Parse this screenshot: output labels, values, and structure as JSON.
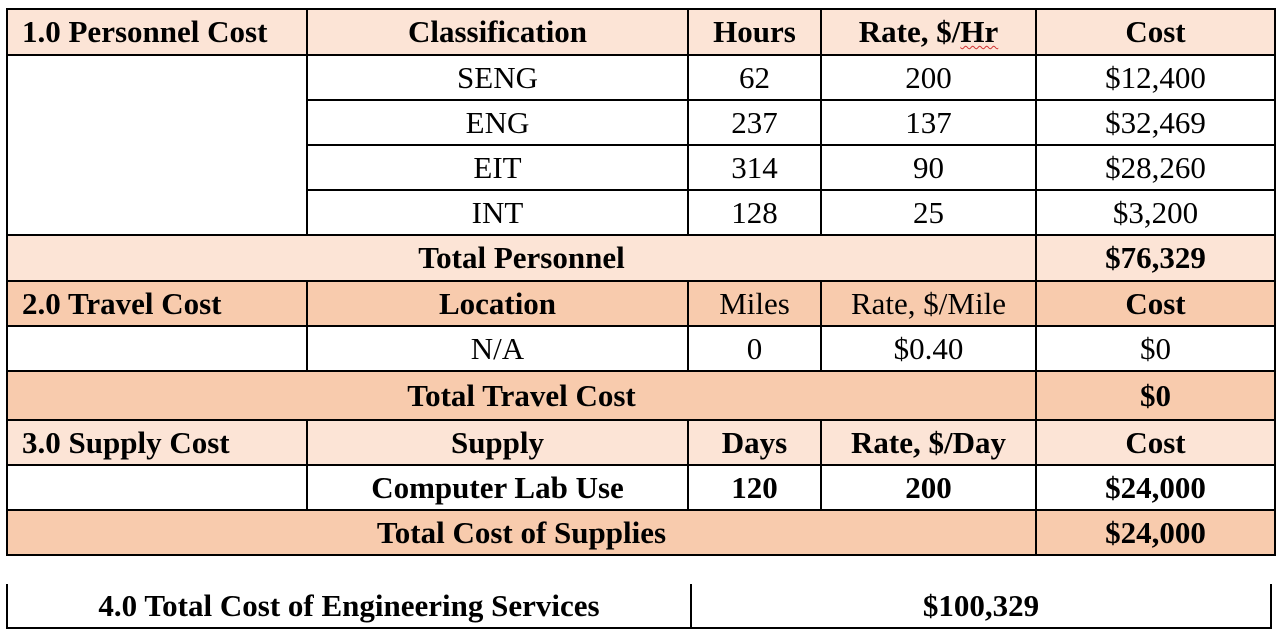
{
  "personnel": {
    "section_label": "1.0 Personnel Cost",
    "headers": {
      "classification": "Classification",
      "hours": "Hours",
      "rate_prefix": "Rate, $/",
      "rate_unit": "Hr",
      "cost": "Cost"
    },
    "rows": [
      {
        "classification": "SENG",
        "hours": "62",
        "rate": "200",
        "cost": "$12,400"
      },
      {
        "classification": "ENG",
        "hours": "237",
        "rate": "137",
        "cost": "$32,469"
      },
      {
        "classification": "EIT",
        "hours": "314",
        "rate": "90",
        "cost": "$28,260"
      },
      {
        "classification": "INT",
        "hours": "128",
        "rate": "25",
        "cost": "$3,200"
      }
    ],
    "total_label": "Total Personnel",
    "total_value": "$76,329"
  },
  "travel": {
    "section_label": "2.0 Travel Cost",
    "headers": {
      "location": "Location",
      "miles": "Miles",
      "rate": "Rate, $/Mile",
      "cost": "Cost"
    },
    "rows": [
      {
        "location": "N/A",
        "miles": "0",
        "rate": "$0.40",
        "cost": "$0"
      }
    ],
    "total_label": "Total Travel Cost",
    "total_value": "$0"
  },
  "supply": {
    "section_label": "3.0 Supply Cost",
    "headers": {
      "supply": "Supply",
      "days": "Days",
      "rate": "Rate, $/Day",
      "cost": "Cost"
    },
    "rows": [
      {
        "supply": "Computer Lab Use",
        "days": "120",
        "rate": "200",
        "cost": "$24,000"
      }
    ],
    "total_label": "Total Cost of Supplies",
    "total_value": "$24,000"
  },
  "grand_total": {
    "label": "4.0 Total Cost of Engineering Services",
    "value": "$100,329"
  },
  "colors": {
    "light_header": "#fce4d6",
    "dark_header": "#f8cbad",
    "border": "#000000"
  }
}
